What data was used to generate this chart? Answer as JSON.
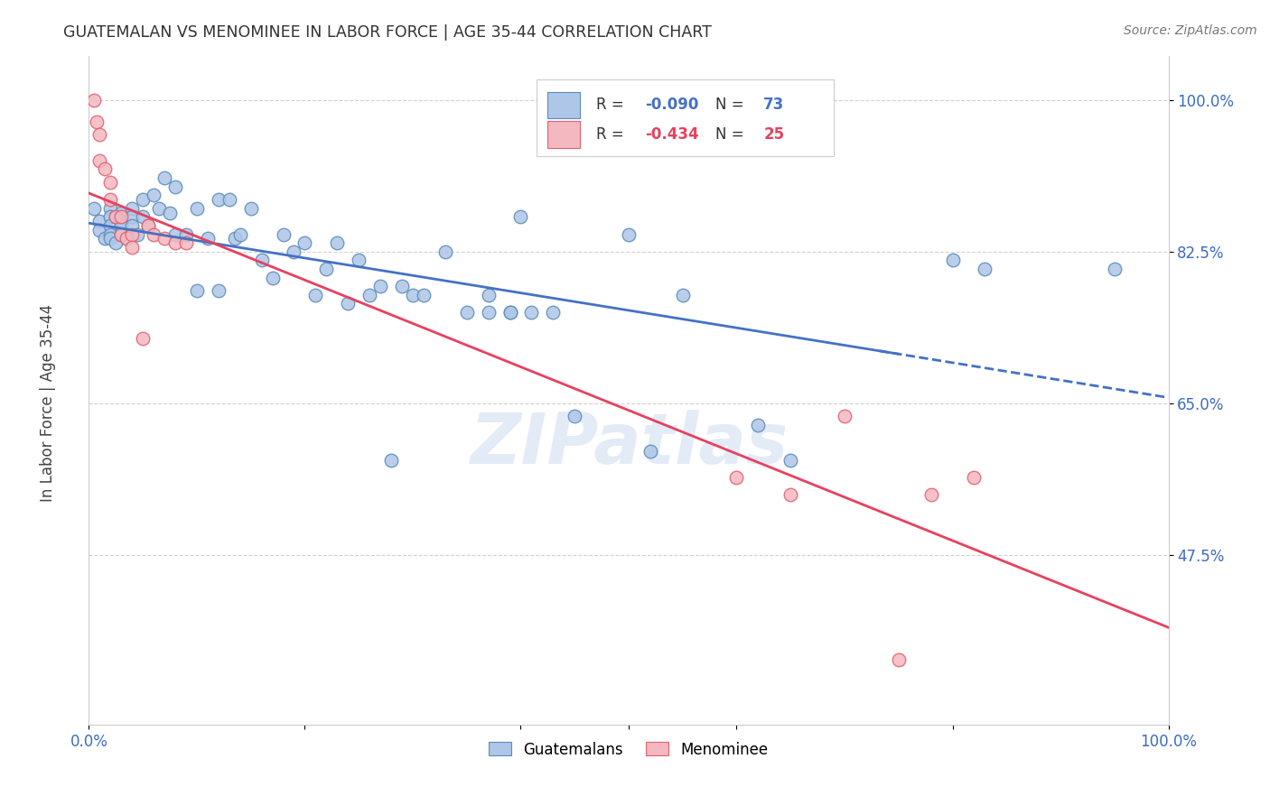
{
  "title": "GUATEMALAN VS MENOMINEE IN LABOR FORCE | AGE 35-44 CORRELATION CHART",
  "source": "Source: ZipAtlas.com",
  "ylabel": "In Labor Force | Age 35-44",
  "xlim": [
    0.0,
    1.0
  ],
  "ylim": [
    0.28,
    1.05
  ],
  "blue_R": -0.09,
  "blue_N": 73,
  "pink_R": -0.434,
  "pink_N": 25,
  "blue_color": "#AEC6E8",
  "pink_color": "#F4B8C0",
  "blue_edge_color": "#5B8DB8",
  "pink_edge_color": "#E06070",
  "blue_line_color": "#4472C4",
  "pink_line_color": "#E84060",
  "background_color": "#ffffff",
  "watermark": "ZIPatlas",
  "blue_scatter_x": [
    0.005,
    0.01,
    0.01,
    0.015,
    0.02,
    0.02,
    0.02,
    0.02,
    0.02,
    0.025,
    0.025,
    0.03,
    0.03,
    0.03,
    0.03,
    0.035,
    0.04,
    0.04,
    0.04,
    0.045,
    0.05,
    0.05,
    0.055,
    0.06,
    0.065,
    0.07,
    0.075,
    0.08,
    0.08,
    0.09,
    0.1,
    0.1,
    0.11,
    0.12,
    0.12,
    0.13,
    0.135,
    0.14,
    0.15,
    0.16,
    0.17,
    0.18,
    0.19,
    0.2,
    0.21,
    0.22,
    0.23,
    0.24,
    0.25,
    0.26,
    0.27,
    0.28,
    0.29,
    0.3,
    0.31,
    0.33,
    0.35,
    0.37,
    0.39,
    0.4,
    0.41,
    0.43,
    0.45,
    0.5,
    0.52,
    0.55,
    0.62,
    0.65,
    0.8,
    0.83,
    0.95,
    0.37,
    0.39
  ],
  "blue_scatter_y": [
    0.875,
    0.86,
    0.85,
    0.84,
    0.875,
    0.865,
    0.855,
    0.845,
    0.84,
    0.865,
    0.835,
    0.87,
    0.86,
    0.855,
    0.845,
    0.84,
    0.875,
    0.865,
    0.855,
    0.845,
    0.885,
    0.865,
    0.855,
    0.89,
    0.875,
    0.91,
    0.87,
    0.845,
    0.9,
    0.845,
    0.78,
    0.875,
    0.84,
    0.885,
    0.78,
    0.885,
    0.84,
    0.845,
    0.875,
    0.815,
    0.795,
    0.845,
    0.825,
    0.835,
    0.775,
    0.805,
    0.835,
    0.765,
    0.815,
    0.775,
    0.785,
    0.585,
    0.785,
    0.775,
    0.775,
    0.825,
    0.755,
    0.775,
    0.755,
    0.865,
    0.755,
    0.755,
    0.635,
    0.845,
    0.595,
    0.775,
    0.625,
    0.585,
    0.815,
    0.805,
    0.805,
    0.755,
    0.755
  ],
  "pink_scatter_x": [
    0.005,
    0.007,
    0.01,
    0.01,
    0.015,
    0.02,
    0.02,
    0.025,
    0.03,
    0.03,
    0.035,
    0.04,
    0.04,
    0.05,
    0.055,
    0.06,
    0.07,
    0.08,
    0.09,
    0.6,
    0.65,
    0.7,
    0.75,
    0.78,
    0.82
  ],
  "pink_scatter_y": [
    1.0,
    0.975,
    0.96,
    0.93,
    0.92,
    0.905,
    0.885,
    0.865,
    0.865,
    0.845,
    0.84,
    0.845,
    0.83,
    0.725,
    0.855,
    0.845,
    0.84,
    0.835,
    0.835,
    0.565,
    0.545,
    0.635,
    0.355,
    0.545,
    0.565
  ]
}
